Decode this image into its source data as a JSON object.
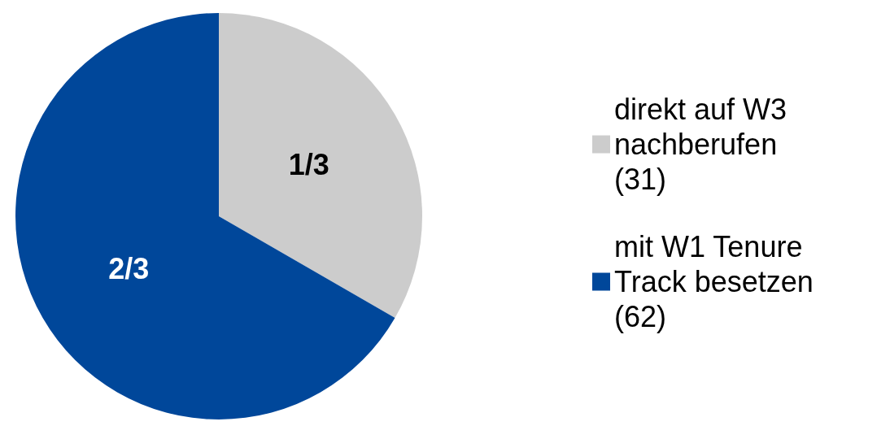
{
  "chart_data": {
    "type": "pie",
    "categories": [
      "direkt auf W3 nachberufen (31)",
      "mit W1 Tenure Track besetzen (62)"
    ],
    "values": [
      31,
      62
    ],
    "colors": [
      "#cccccc",
      "#00479a"
    ],
    "annotations": [
      "1/3",
      "2/3"
    ],
    "legend": "right"
  }
}
